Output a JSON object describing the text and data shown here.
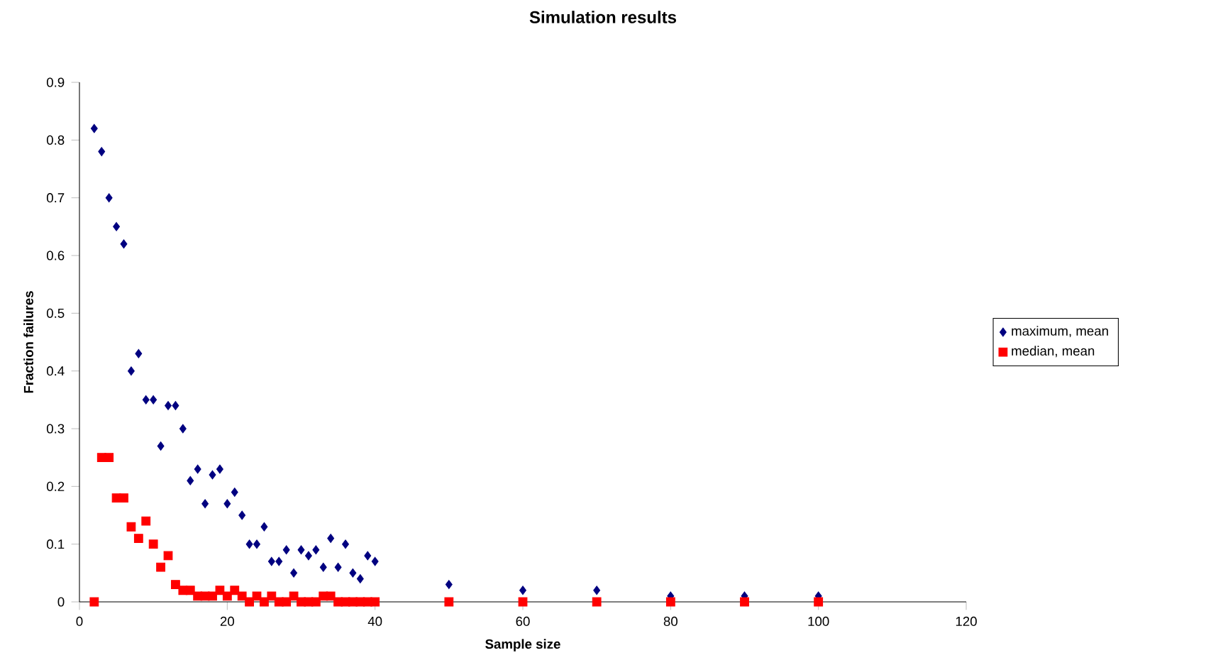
{
  "chart_data": {
    "type": "scatter",
    "title": "Simulation results",
    "xlabel": "Sample size",
    "ylabel": "Fraction failures",
    "xlim": [
      0,
      120
    ],
    "xticks": [
      0,
      20,
      40,
      60,
      80,
      100,
      120
    ],
    "ylim": [
      0,
      0.9
    ],
    "yticks": [
      0,
      0.1,
      0.2,
      0.3,
      0.4,
      0.5,
      0.6,
      0.7,
      0.8,
      0.9
    ],
    "x": [
      2,
      3,
      4,
      5,
      6,
      7,
      8,
      9,
      10,
      11,
      12,
      13,
      14,
      15,
      16,
      17,
      18,
      19,
      20,
      21,
      22,
      23,
      24,
      25,
      26,
      27,
      28,
      29,
      30,
      31,
      32,
      33,
      34,
      35,
      36,
      37,
      38,
      39,
      40,
      50,
      60,
      70,
      80,
      90,
      100
    ],
    "series": [
      {
        "name": "maximum, mean",
        "color": "#000080",
        "marker": "diamond",
        "values": [
          0.82,
          0.78,
          0.7,
          0.65,
          0.62,
          0.4,
          0.43,
          0.35,
          0.35,
          0.27,
          0.34,
          0.34,
          0.3,
          0.21,
          0.23,
          0.17,
          0.22,
          0.23,
          0.17,
          0.19,
          0.15,
          0.1,
          0.1,
          0.13,
          0.07,
          0.07,
          0.09,
          0.05,
          0.09,
          0.08,
          0.09,
          0.06,
          0.11,
          0.06,
          0.1,
          0.05,
          0.04,
          0.08,
          0.07,
          0.03,
          0.02,
          0.02,
          0.01,
          0.01,
          0.01
        ]
      },
      {
        "name": "median, mean",
        "color": "#ff0000",
        "marker": "square",
        "values": [
          0,
          0.25,
          0.25,
          0.18,
          0.18,
          0.13,
          0.11,
          0.14,
          0.1,
          0.06,
          0.08,
          0.03,
          0.02,
          0.02,
          0.01,
          0.01,
          0.01,
          0.02,
          0.01,
          0.02,
          0.01,
          0,
          0.01,
          0,
          0.01,
          0,
          0,
          0.01,
          0,
          0,
          0,
          0.01,
          0.01,
          0,
          0,
          0,
          0,
          0,
          0,
          0,
          0,
          0,
          0,
          0,
          0
        ]
      }
    ],
    "grid": false,
    "legend": "right"
  }
}
